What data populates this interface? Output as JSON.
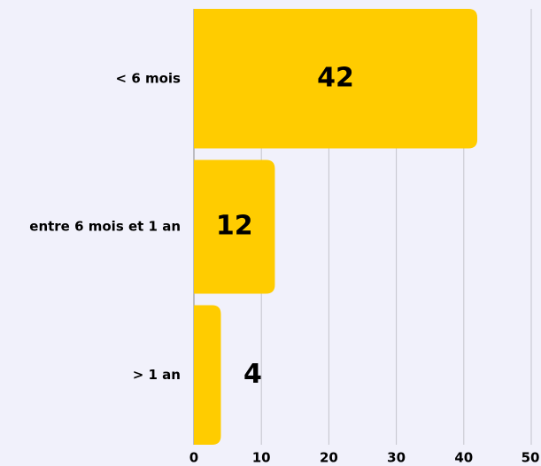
{
  "chart_data": {
    "type": "bar",
    "orientation": "horizontal",
    "categories": [
      "< 6 mois",
      "entre 6 mois et 1 an",
      "> 1 an"
    ],
    "values": [
      42,
      12,
      4
    ],
    "color": "#ffcc00",
    "xlim": [
      0,
      50
    ],
    "xticks": [
      0,
      10,
      20,
      30,
      40,
      50
    ],
    "grid": true
  }
}
